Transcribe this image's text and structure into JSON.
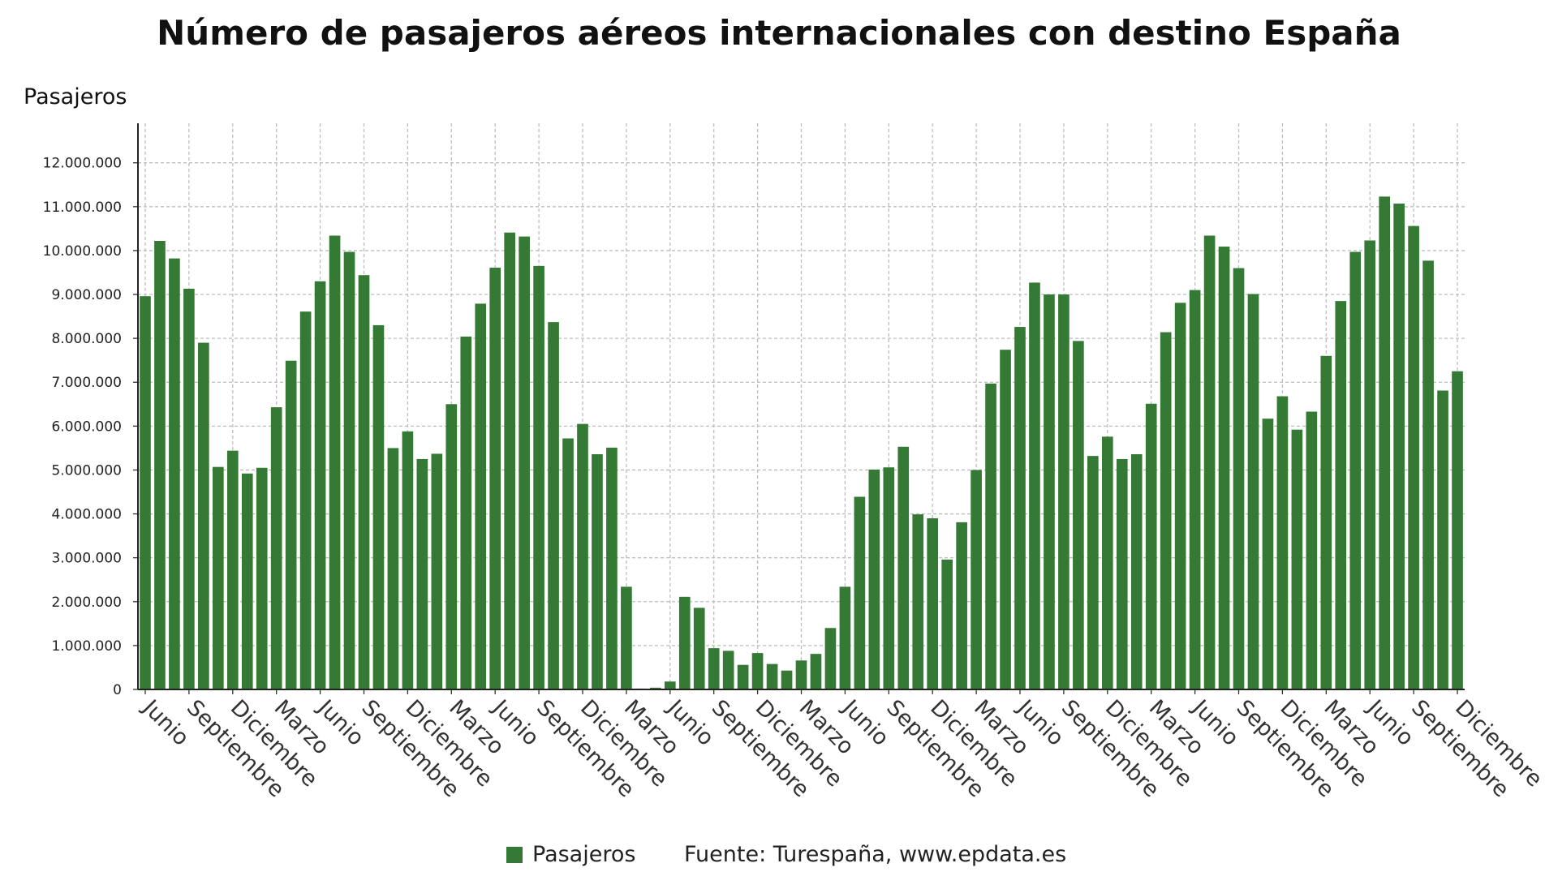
{
  "chart_data": {
    "type": "bar",
    "title": "Número de pasajeros aéreos internacionales con destino España",
    "ylabel": "Pasajeros",
    "xlabel": "",
    "ylim": [
      0,
      12900000
    ],
    "yticks": [
      0,
      1000000,
      2000000,
      3000000,
      4000000,
      5000000,
      6000000,
      7000000,
      8000000,
      9000000,
      10000000,
      11000000,
      12000000
    ],
    "ytick_labels": [
      "0",
      "1.000.000",
      "2.000.000",
      "3.000.000",
      "4.000.000",
      "5.000.000",
      "6.000.000",
      "7.000.000",
      "8.000.000",
      "9.000.000",
      "10.000.000",
      "11.000.000",
      "12.000.000"
    ],
    "grid": true,
    "legend_position": "bottom",
    "xtick_labels": [
      {
        "index": 0,
        "label": "Junio"
      },
      {
        "index": 3,
        "label": "Septiembre"
      },
      {
        "index": 6,
        "label": "Diciembre"
      },
      {
        "index": 9,
        "label": "Marzo"
      },
      {
        "index": 12,
        "label": "Junio"
      },
      {
        "index": 15,
        "label": "Septiembre"
      },
      {
        "index": 18,
        "label": "Diciembre"
      },
      {
        "index": 21,
        "label": "Marzo"
      },
      {
        "index": 24,
        "label": "Junio"
      },
      {
        "index": 27,
        "label": "Septiembre"
      },
      {
        "index": 30,
        "label": "Diciembre"
      },
      {
        "index": 33,
        "label": "Marzo"
      },
      {
        "index": 36,
        "label": "Junio"
      },
      {
        "index": 39,
        "label": "Septiembre"
      },
      {
        "index": 42,
        "label": "Diciembre"
      },
      {
        "index": 45,
        "label": "Marzo"
      },
      {
        "index": 48,
        "label": "Junio"
      },
      {
        "index": 51,
        "label": "Septiembre"
      },
      {
        "index": 54,
        "label": "Diciembre"
      },
      {
        "index": 57,
        "label": "Marzo"
      },
      {
        "index": 60,
        "label": "Junio"
      },
      {
        "index": 63,
        "label": "Septiembre"
      },
      {
        "index": 66,
        "label": "Diciembre"
      },
      {
        "index": 69,
        "label": "Marzo"
      },
      {
        "index": 72,
        "label": "Junio"
      },
      {
        "index": 75,
        "label": "Septiembre"
      },
      {
        "index": 78,
        "label": "Diciembre"
      },
      {
        "index": 81,
        "label": "Marzo"
      },
      {
        "index": 84,
        "label": "Junio"
      },
      {
        "index": 87,
        "label": "Septiembre"
      },
      {
        "index": 90,
        "label": "Diciembre"
      }
    ],
    "series": [
      {
        "name": "Pasajeros",
        "color": "#347a35",
        "values": [
          8960000,
          10220000,
          9820000,
          9130000,
          7900000,
          5070000,
          5440000,
          4920000,
          5050000,
          6430000,
          7490000,
          8610000,
          9300000,
          10340000,
          9970000,
          9440000,
          8300000,
          5500000,
          5880000,
          5250000,
          5370000,
          6500000,
          8040000,
          8790000,
          9610000,
          10410000,
          10320000,
          9650000,
          8370000,
          5720000,
          6050000,
          5360000,
          5510000,
          2340000,
          20000,
          40000,
          180000,
          2110000,
          1860000,
          940000,
          880000,
          560000,
          830000,
          580000,
          430000,
          660000,
          810000,
          1400000,
          2340000,
          4390000,
          5010000,
          5060000,
          5530000,
          3990000,
          3900000,
          2960000,
          3810000,
          5000000,
          6970000,
          7740000,
          8260000,
          9270000,
          9000000,
          9000000,
          7940000,
          5320000,
          5760000,
          5250000,
          5360000,
          6510000,
          8140000,
          8810000,
          9100000,
          10340000,
          10090000,
          9600000,
          9010000,
          6170000,
          6680000,
          5920000,
          6330000,
          7600000,
          8850000,
          9970000,
          10230000,
          11230000,
          11070000,
          10560000,
          9770000,
          6810000,
          7250000
        ]
      }
    ]
  },
  "legend": {
    "label": "Pasajeros",
    "color": "#347a35"
  },
  "source": "Fuente: Turespaña, www.epdata.es"
}
